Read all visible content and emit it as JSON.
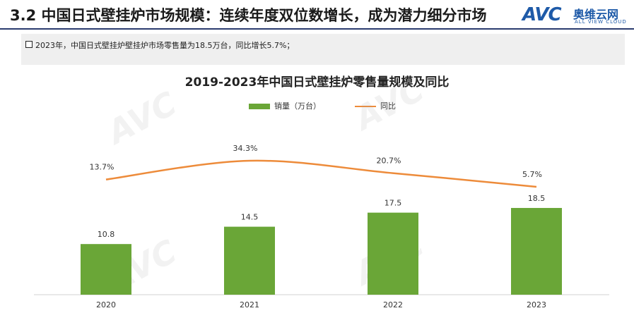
{
  "slide": {
    "title": "3.2 中国日式壁挂炉市场规模：连续年度双位数增长，成为潜力细分市场"
  },
  "logo": {
    "mark": "AVC",
    "name_cn": "奥维云网",
    "name_en": "ALL VIEW CLOUD",
    "color": "#1e5aa8"
  },
  "note": {
    "text": "2023年，中国日式壁挂炉壁挂炉市场零售量为18.5万台，同比增长5.7%；"
  },
  "chart_data": {
    "type": "bar",
    "title": "2019-2023年中国日式壁挂炉零售量规模及同比",
    "categories": [
      "2020",
      "2021",
      "2022",
      "2023"
    ],
    "series": [
      {
        "name": "销量（万台）",
        "type": "bar",
        "color": "#6aa637",
        "values": [
          10.8,
          14.5,
          17.5,
          18.5
        ],
        "labels": [
          "10.8",
          "14.5",
          "17.5",
          "18.5"
        ]
      },
      {
        "name": "同比",
        "type": "line",
        "color": "#ed8b3a",
        "values": [
          13.7,
          34.3,
          20.7,
          5.7
        ],
        "labels": [
          "13.7%",
          "34.3%",
          "20.7%",
          "5.7%"
        ]
      }
    ],
    "legend_position": "top",
    "grid": false
  }
}
